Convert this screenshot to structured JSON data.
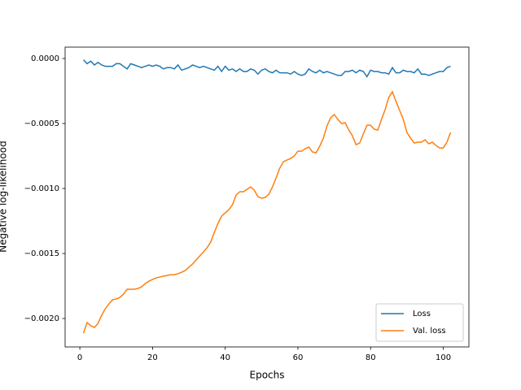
{
  "chart_data": {
    "type": "line",
    "xlabel": "Epochs",
    "ylabel": "Negative log-likelihood",
    "x": [
      1,
      2,
      3,
      4,
      5,
      6,
      7,
      8,
      9,
      10,
      11,
      12,
      13,
      14,
      15,
      16,
      17,
      18,
      19,
      20,
      21,
      22,
      23,
      24,
      25,
      26,
      27,
      28,
      29,
      30,
      31,
      32,
      33,
      34,
      35,
      36,
      37,
      38,
      39,
      40,
      41,
      42,
      43,
      44,
      45,
      46,
      47,
      48,
      49,
      50,
      51,
      52,
      53,
      54,
      55,
      56,
      57,
      58,
      59,
      60,
      61,
      62,
      63,
      64,
      65,
      66,
      67,
      68,
      69,
      70,
      71,
      72,
      73,
      74,
      75,
      76,
      77,
      78,
      79,
      80,
      81,
      82,
      83,
      84,
      85,
      86,
      87,
      88,
      89,
      90,
      91,
      92,
      93,
      94,
      95,
      96,
      97,
      98,
      99,
      100,
      101,
      102
    ],
    "series": [
      {
        "name": "Loss",
        "color": "#1f77b4",
        "values": [
          -1e-05,
          -4e-05,
          -2e-05,
          -5e-05,
          -3e-05,
          -5e-05,
          -6e-05,
          -6e-05,
          -6e-05,
          -4e-05,
          -4e-05,
          -6e-05,
          -8e-05,
          -4e-05,
          -5e-05,
          -6e-05,
          -7e-05,
          -6e-05,
          -5e-05,
          -6e-05,
          -5e-05,
          -6e-05,
          -8e-05,
          -7e-05,
          -7e-05,
          -8e-05,
          -5e-05,
          -9e-05,
          -8e-05,
          -7e-05,
          -5e-05,
          -6e-05,
          -7e-05,
          -6e-05,
          -7e-05,
          -8e-05,
          -9e-05,
          -6e-05,
          -0.0001,
          -6e-05,
          -9e-05,
          -8e-05,
          -0.0001,
          -8e-05,
          -0.0001,
          -0.0001,
          -8e-05,
          -9e-05,
          -0.00012,
          -9e-05,
          -8e-05,
          -0.0001,
          -0.00011,
          -9e-05,
          -0.00011,
          -0.00011,
          -0.00011,
          -0.00012,
          -0.0001,
          -0.00012,
          -0.00013,
          -0.00012,
          -8e-05,
          -0.0001,
          -0.00011,
          -9e-05,
          -0.00011,
          -0.0001,
          -0.00011,
          -0.00012,
          -0.00013,
          -0.00013,
          -0.0001,
          -0.0001,
          -9e-05,
          -0.00011,
          -9e-05,
          -0.0001,
          -0.00014,
          -9e-05,
          -0.0001,
          -0.0001,
          -0.00011,
          -0.00011,
          -0.00012,
          -7e-05,
          -0.00011,
          -0.00011,
          -9e-05,
          -0.0001,
          -0.0001,
          -0.00011,
          -8e-05,
          -0.00012,
          -0.00012,
          -0.00013,
          -0.00012,
          -0.00011,
          -0.0001,
          -0.0001,
          -7e-05,
          -6e-05
        ]
      },
      {
        "name": "Val. loss",
        "color": "#ff7f0e",
        "values": [
          -0.002113,
          -0.002031,
          -0.002056,
          -0.002069,
          -0.002038,
          -0.001975,
          -0.001925,
          -0.001888,
          -0.001856,
          -0.00185,
          -0.001838,
          -0.001813,
          -0.001775,
          -0.001775,
          -0.001775,
          -0.001769,
          -0.001756,
          -0.001731,
          -0.001713,
          -0.0017,
          -0.001688,
          -0.001681,
          -0.001675,
          -0.001669,
          -0.001663,
          -0.001663,
          -0.001656,
          -0.001644,
          -0.001631,
          -0.001606,
          -0.001581,
          -0.00155,
          -0.001519,
          -0.001488,
          -0.001456,
          -0.001413,
          -0.001338,
          -0.001269,
          -0.001213,
          -0.001188,
          -0.001163,
          -0.001125,
          -0.00105,
          -0.001025,
          -0.001025,
          -0.001006,
          -0.000988,
          -0.001013,
          -0.001063,
          -0.001075,
          -0.001069,
          -0.001044,
          -0.000988,
          -0.000919,
          -0.000844,
          -0.000794,
          -0.000781,
          -0.000769,
          -0.00075,
          -0.000713,
          -0.000713,
          -0.000694,
          -0.000681,
          -0.000719,
          -0.000725,
          -0.000675,
          -0.000613,
          -0.000519,
          -0.000456,
          -0.000431,
          -0.000469,
          -0.0005,
          -0.000494,
          -0.00055,
          -0.000594,
          -0.000663,
          -0.00065,
          -0.000581,
          -0.000513,
          -0.000513,
          -0.000544,
          -0.00055,
          -0.000469,
          -0.000394,
          -0.0003,
          -0.000256,
          -0.000331,
          -0.0004,
          -0.000469,
          -0.000569,
          -0.000613,
          -0.00065,
          -0.000644,
          -0.000644,
          -0.000625,
          -0.000656,
          -0.000644,
          -0.000669,
          -0.000688,
          -0.000688,
          -0.000644,
          -0.000569
        ]
      }
    ],
    "xlim": [
      -4.05,
      107.05
    ],
    "xticks": [
      0,
      20,
      40,
      60,
      80,
      100
    ],
    "ylim": [
      -0.0022188,
      8.75e-05
    ],
    "yticks": [
      {
        "value": 0,
        "label": "0.0000"
      },
      {
        "value": -0.0005,
        "label": "−0.0005"
      },
      {
        "value": -0.001,
        "label": "−0.0010"
      },
      {
        "value": -0.0015,
        "label": "−0.0015"
      },
      {
        "value": -0.002,
        "label": "−0.0020"
      }
    ],
    "legend": "lower right"
  }
}
